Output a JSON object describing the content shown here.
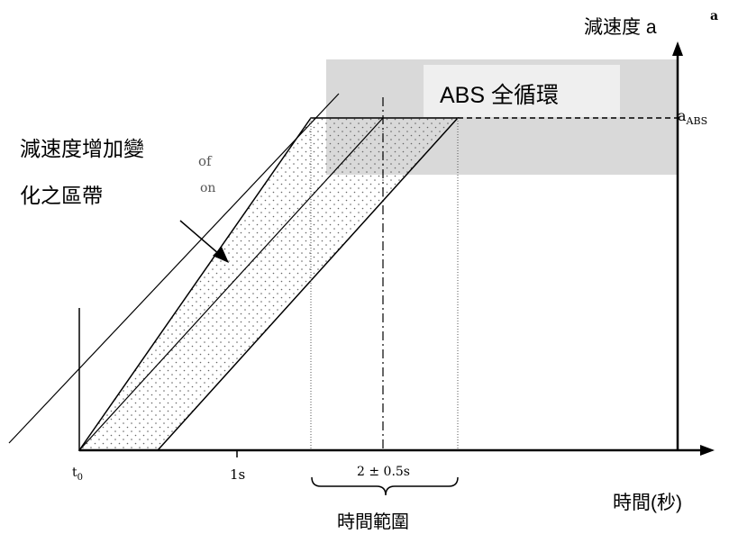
{
  "labels": {
    "y_axis_title": "減速度 a",
    "corner_glyph": "a",
    "abs_title": "ABS 全循環",
    "a_abs_base": "a",
    "a_abs_sub": "ABS",
    "zone_line1": "減速度增加變",
    "zone_line2": "化之區帶",
    "ghost_of": "of",
    "ghost_on": "on",
    "t0_base": "t",
    "t0_sub": "0",
    "tick_1s": "1s",
    "tick_range": "2 ± 0.5s",
    "x_axis_title": "時間(秒)",
    "time_range": "時間範圍"
  },
  "colors": {
    "abs_band": "#d9d9d9",
    "line": "#000000",
    "dots": "#666666"
  }
}
